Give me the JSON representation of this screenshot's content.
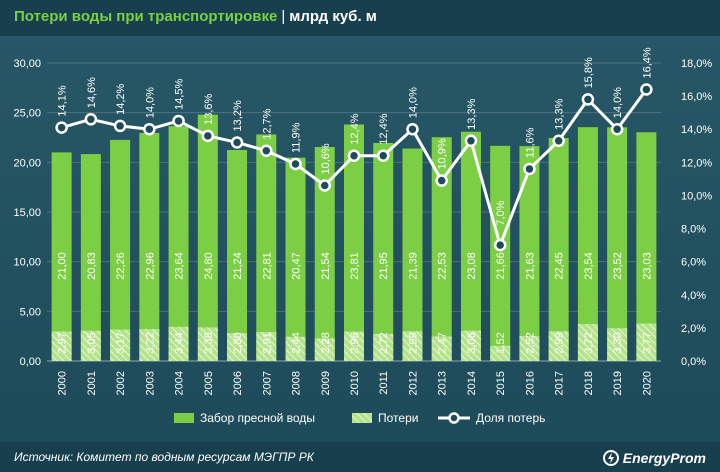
{
  "title": {
    "main": "Потери воды при транспортировке",
    "separator": "|",
    "unit": "млрд куб. м"
  },
  "source": "Источник: Комитет по водным ресурсам МЭГПР РК",
  "brand": "EnergyProm",
  "colors": {
    "intake": "#7ccf45",
    "losses": "#b4e38c",
    "share_line": "#ffffff",
    "background": "#1f4a5a"
  },
  "chart_data": {
    "type": "bar",
    "categories": [
      "2000",
      "2001",
      "2002",
      "2003",
      "2004",
      "2005",
      "2006",
      "2007",
      "2008",
      "2009",
      "2010",
      "2011",
      "2012",
      "2013",
      "2014",
      "2015",
      "2016",
      "2017",
      "2018",
      "2019",
      "2020"
    ],
    "series": [
      {
        "name": "Забор пресной воды",
        "type": "bar",
        "values": [
          21.0,
          20.83,
          22.26,
          22.96,
          23.64,
          24.8,
          21.24,
          22.81,
          20.47,
          21.54,
          23.81,
          21.95,
          21.39,
          22.53,
          23.08,
          21.66,
          21.63,
          22.45,
          23.54,
          23.52,
          23.03
        ],
        "labels": [
          "21,00",
          "20,83",
          "22,26",
          "22,96",
          "23,64",
          "24,80",
          "21,24",
          "22,81",
          "20,47",
          "21,54",
          "23,81",
          "21,95",
          "21,39",
          "22,53",
          "23,08",
          "21,66",
          "21,63",
          "22,45",
          "23,54",
          "23,52",
          "23,03"
        ]
      },
      {
        "name": "Потери",
        "type": "bar-overlay-hatched",
        "values": [
          2.97,
          3.05,
          3.17,
          3.22,
          3.44,
          3.38,
          2.8,
          2.91,
          2.44,
          2.28,
          2.96,
          2.72,
          2.99,
          2.47,
          3.06,
          1.52,
          2.52,
          2.99,
          3.72,
          3.3,
          3.77
        ],
        "labels": [
          "2,97",
          "3,05",
          "3,17",
          "3,22",
          "3,44",
          "3,38",
          "2,80",
          "2,91",
          "2,44",
          "2,28",
          "2,96",
          "2,72",
          "2,99",
          "2,47",
          "3,06",
          "1,52",
          "2,52",
          "2,99",
          "3,72",
          "3,30",
          "3,77"
        ]
      },
      {
        "name": "Доля потерь",
        "type": "line",
        "axis": "right",
        "values": [
          14.1,
          14.6,
          14.2,
          14.0,
          14.5,
          13.6,
          13.2,
          12.7,
          11.9,
          10.6,
          12.4,
          12.4,
          14.0,
          10.9,
          13.3,
          7.0,
          11.6,
          13.3,
          15.8,
          14.0,
          16.4
        ],
        "labels": [
          "14,1%",
          "14,6%",
          "14,2%",
          "14,0%",
          "14,5%",
          "13,6%",
          "13,2%",
          "12,7%",
          "11,9%",
          "10,6%",
          "12,4%",
          "12,4%",
          "14,0%",
          "10,9%",
          "13,3%",
          "7,0%",
          "11,6%",
          "13,3%",
          "15,8%",
          "14,0%",
          "16,4%"
        ]
      }
    ],
    "y_left": {
      "lim": [
        0,
        30
      ],
      "ticks": [
        "0,00",
        "5,00",
        "10,00",
        "15,00",
        "20,00",
        "25,00",
        "30,00"
      ]
    },
    "y_right": {
      "lim": [
        0,
        18
      ],
      "ticks": [
        "0,0%",
        "2,0%",
        "4,0%",
        "6,0%",
        "8,0%",
        "10,0%",
        "12,0%",
        "14,0%",
        "16,0%",
        "18,0%"
      ]
    },
    "grid": true,
    "legend_position": "bottom"
  }
}
